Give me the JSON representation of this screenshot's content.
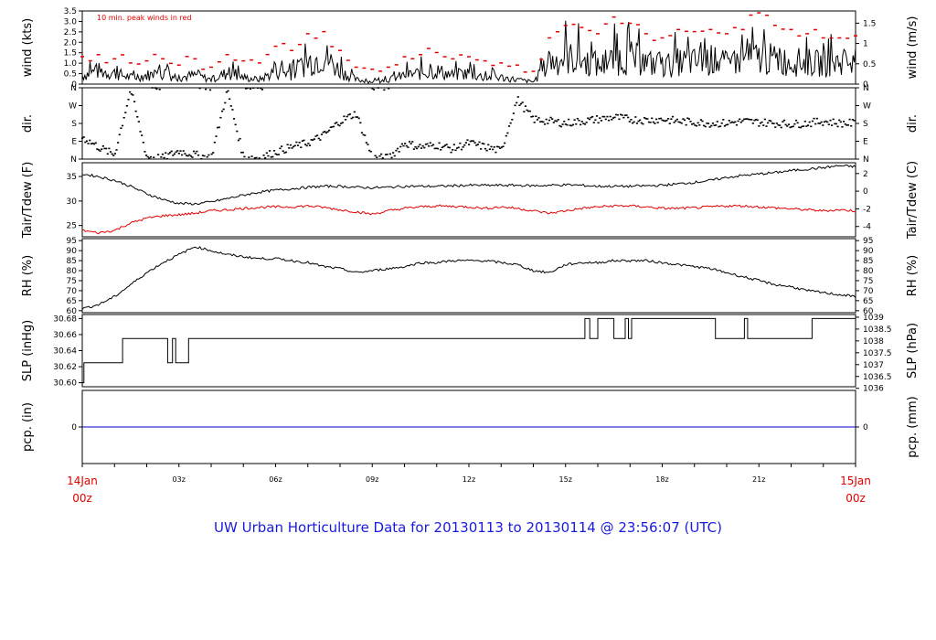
{
  "title": "UW Urban Horticulture Data for 20130113  to  20130114 @ 23:56:07  (UTC)",
  "colors": {
    "title": "#1a1adf",
    "peak": "#e00000",
    "tdew": "#e00000",
    "line": "#000000",
    "precip": "#0000cc",
    "time_edge": "#e00000"
  },
  "time_axis": {
    "start_label": [
      "14Jan",
      "00z"
    ],
    "end_label": [
      "15Jan",
      "00z"
    ],
    "ticks": [
      {
        "hour": 3,
        "label": "03z"
      },
      {
        "hour": 6,
        "label": "06z"
      },
      {
        "hour": 9,
        "label": "09z"
      },
      {
        "hour": 12,
        "label": "12z"
      },
      {
        "hour": 15,
        "label": "15z"
      },
      {
        "hour": 18,
        "label": "18z"
      },
      {
        "hour": 21,
        "label": "21z"
      }
    ]
  },
  "chart_data": [
    {
      "type": "line",
      "key": "wind",
      "ylabel_left": "wind (kts)",
      "ylabel_right": "wind (m/s)",
      "annotation": "10 min. peak winds in red",
      "ylim": [
        0,
        3.5
      ],
      "left_ticks": [
        "0",
        "0.5",
        "1.0",
        "1.5",
        "2.0",
        "2.5",
        "3.0",
        "3.5"
      ],
      "right_ticks": [
        {
          "v": 0,
          "t": "0"
        },
        {
          "v": 0.5,
          "t": "0.5"
        },
        {
          "v": 1,
          "t": "1"
        },
        {
          "v": 1.5,
          "t": "1.5"
        }
      ],
      "right_factor": 0.5144,
      "x_hours": [
        0,
        0.5,
        1,
        1.5,
        2,
        2.5,
        3,
        3.5,
        4,
        4.5,
        5,
        5.5,
        6,
        6.5,
        7,
        7.5,
        8,
        8.5,
        9,
        9.5,
        10,
        10.5,
        11,
        11.5,
        12,
        12.5,
        13,
        13.5,
        14,
        14.5,
        15,
        15.5,
        16,
        16.5,
        17,
        17.5,
        18,
        18.5,
        19,
        19.5,
        20,
        20.5,
        21,
        21.5,
        22,
        22.5,
        23,
        23.5,
        24
      ],
      "mean_kts": [
        0.4,
        0.6,
        0.5,
        0.3,
        0.4,
        0.5,
        0.3,
        0.4,
        0.2,
        0.5,
        0.3,
        0.2,
        0.6,
        0.5,
        1.0,
        1.3,
        0.6,
        0.2,
        0.1,
        0.2,
        0.4,
        0.5,
        0.6,
        0.4,
        0.5,
        0.3,
        0.3,
        0.2,
        0.1,
        1.0,
        1.2,
        1.1,
        0.8,
        1.1,
        1.2,
        1.0,
        0.8,
        1.0,
        1.0,
        1.1,
        0.9,
        1.1,
        1.2,
        1.1,
        1.0,
        1.0,
        0.9,
        1.0,
        1.1
      ],
      "peak_kts": [
        1.3,
        1.4,
        1.2,
        1.0,
        1.1,
        1.2,
        0.9,
        1.2,
        0.8,
        1.4,
        1.1,
        1.0,
        1.8,
        1.6,
        2.4,
        2.5,
        1.6,
        0.8,
        0.7,
        0.8,
        1.3,
        1.4,
        1.5,
        1.2,
        1.3,
        1.1,
        1.0,
        0.9,
        0.6,
        2.2,
        2.8,
        2.7,
        2.4,
        3.2,
        2.9,
        2.4,
        2.2,
        2.6,
        2.5,
        2.6,
        2.4,
        2.6,
        3.4,
        2.8,
        2.6,
        2.4,
        2.2,
        2.2,
        2.3
      ]
    },
    {
      "type": "scatter",
      "key": "dir",
      "ylabel_left": "dir.",
      "ylabel_right": "dir.",
      "ylim": [
        0,
        360
      ],
      "left_ticks": [
        {
          "v": 0,
          "t": "N"
        },
        {
          "v": 90,
          "t": "E"
        },
        {
          "v": 180,
          "t": "S"
        },
        {
          "v": 270,
          "t": "W"
        },
        {
          "v": 360,
          "t": "N"
        }
      ],
      "right_ticks": [
        {
          "v": 0,
          "t": "N"
        },
        {
          "v": 90,
          "t": "E"
        },
        {
          "v": 180,
          "t": "S"
        },
        {
          "v": 270,
          "t": "W"
        },
        {
          "v": 360,
          "t": "N"
        }
      ],
      "x_hours": [
        0,
        0.5,
        1,
        1.5,
        2,
        2.5,
        3,
        3.5,
        4,
        4.5,
        5,
        5.5,
        6,
        6.5,
        7,
        7.5,
        8,
        8.5,
        9,
        9.5,
        10,
        10.5,
        11,
        11.5,
        12,
        12.5,
        13,
        13.5,
        14,
        14.5,
        15,
        15.5,
        16,
        16.5,
        17,
        17.5,
        18,
        18.5,
        19,
        19.5,
        20,
        20.5,
        21,
        21.5,
        22,
        22.5,
        23,
        23.5,
        24
      ],
      "deg": [
        110,
        60,
        20,
        350,
        10,
        5,
        40,
        20,
        5,
        345,
        10,
        5,
        35,
        60,
        80,
        120,
        190,
        230,
        5,
        5,
        80,
        60,
        70,
        50,
        80,
        60,
        40,
        300,
        200,
        190,
        180,
        190,
        200,
        210,
        200,
        195,
        200,
        190,
        185,
        180,
        180,
        190,
        185,
        180,
        175,
        180,
        190,
        180,
        180
      ]
    },
    {
      "type": "line",
      "key": "temp",
      "ylabel_left": "Tair/Tdew (F)",
      "ylabel_right": "Tair/Tdew (C)",
      "ylim": [
        22.7,
        37.8
      ],
      "left_ticks": [
        {
          "v": 25,
          "t": "25"
        },
        {
          "v": 30,
          "t": "30"
        },
        {
          "v": 35,
          "t": "35"
        }
      ],
      "right_ticks": [
        {
          "v": -4,
          "t": "-4"
        },
        {
          "v": -2,
          "t": "-2"
        },
        {
          "v": 0,
          "t": "0"
        },
        {
          "v": 2,
          "t": "2"
        }
      ],
      "x_hours": [
        0,
        0.5,
        1,
        1.5,
        2,
        2.5,
        3,
        3.5,
        4,
        4.5,
        5,
        5.5,
        6,
        6.5,
        7,
        7.5,
        8,
        8.5,
        9,
        9.5,
        10,
        10.5,
        11,
        11.5,
        12,
        12.5,
        13,
        13.5,
        14,
        14.5,
        15,
        15.5,
        16,
        16.5,
        17,
        17.5,
        18,
        18.5,
        19,
        19.5,
        20,
        20.5,
        21,
        21.5,
        22,
        22.5,
        23,
        23.5,
        24
      ],
      "series": [
        {
          "name": "Tair",
          "color": "#000000",
          "values": [
            35.5,
            35.0,
            34.2,
            33.0,
            31.5,
            30.3,
            29.5,
            29.4,
            29.8,
            30.5,
            31.2,
            31.8,
            32.2,
            32.5,
            32.8,
            33.0,
            33.0,
            32.8,
            32.7,
            32.8,
            33.0,
            33.0,
            33.0,
            33.1,
            33.2,
            33.2,
            33.2,
            33.2,
            33.1,
            33.2,
            33.3,
            33.2,
            33.0,
            33.0,
            33.0,
            33.1,
            33.2,
            33.5,
            33.8,
            34.2,
            34.8,
            35.2,
            35.5,
            35.8,
            36.2,
            36.5,
            36.8,
            37.2,
            37.0
          ]
        },
        {
          "name": "Tdew",
          "color": "#e00000",
          "values": [
            24.0,
            23.5,
            24.0,
            25.5,
            26.5,
            27.0,
            27.2,
            27.5,
            28.0,
            28.2,
            28.5,
            28.7,
            28.8,
            28.8,
            29.0,
            28.7,
            28.2,
            27.8,
            27.3,
            28.0,
            28.5,
            28.8,
            29.0,
            28.9,
            28.8,
            28.5,
            28.8,
            28.5,
            28.0,
            27.5,
            28.0,
            28.5,
            28.8,
            29.0,
            29.0,
            28.8,
            28.5,
            28.5,
            28.6,
            28.8,
            29.0,
            29.0,
            28.8,
            28.6,
            28.4,
            28.2,
            28.0,
            28.2,
            28.0
          ]
        }
      ]
    },
    {
      "type": "line",
      "key": "rh",
      "ylabel_left": "RH (%)",
      "ylabel_right": "RH (%)",
      "ylim": [
        59,
        96
      ],
      "left_ticks": [
        "60",
        "65",
        "70",
        "75",
        "80",
        "85",
        "90",
        "95"
      ],
      "right_ticks": [
        {
          "v": 60,
          "t": "60"
        },
        {
          "v": 65,
          "t": "65"
        },
        {
          "v": 70,
          "t": "70"
        },
        {
          "v": 75,
          "t": "75"
        },
        {
          "v": 80,
          "t": "80"
        },
        {
          "v": 85,
          "t": "85"
        },
        {
          "v": 90,
          "t": "90"
        },
        {
          "v": 95,
          "t": "95"
        }
      ],
      "x_hours": [
        0,
        0.5,
        1,
        1.5,
        2,
        2.5,
        3,
        3.5,
        4,
        4.5,
        5,
        5.5,
        6,
        6.5,
        7,
        7.5,
        8,
        8.5,
        9,
        9.5,
        10,
        10.5,
        11,
        11.5,
        12,
        12.5,
        13,
        13.5,
        14,
        14.5,
        15,
        15.5,
        16,
        16.5,
        17,
        17.5,
        18,
        18.5,
        19,
        19.5,
        20,
        20.5,
        21,
        21.5,
        22,
        22.5,
        23,
        23.5,
        24
      ],
      "values": [
        61,
        63,
        67,
        73,
        79,
        84,
        88,
        92,
        90,
        88,
        87,
        86,
        86,
        85,
        84,
        82,
        81,
        79,
        80,
        81,
        82,
        84,
        84,
        85,
        85,
        85,
        84,
        83,
        80,
        79,
        83,
        84,
        84,
        85,
        85,
        85,
        84,
        83,
        82,
        81,
        79,
        77,
        75,
        73,
        72,
        70,
        69,
        68,
        67
      ]
    },
    {
      "type": "line",
      "key": "slp",
      "ylabel_left": "SLP (inHg)",
      "ylabel_right": "SLP (hPa)",
      "ylim": [
        30.595,
        30.685
      ],
      "left_ticks": [
        "30.60",
        "30.62",
        "30.64",
        "30.66",
        "30.68"
      ],
      "right_ticks": [
        {
          "v": 1036,
          "t": "1036"
        },
        {
          "v": 1036.5,
          "t": "1036.5"
        },
        {
          "v": 1037,
          "t": "1037"
        },
        {
          "v": 1037.5,
          "t": "1037.5"
        },
        {
          "v": 1038,
          "t": "1038"
        },
        {
          "v": 1038.5,
          "t": "1038.5"
        },
        {
          "v": 1039,
          "t": "1039"
        }
      ],
      "right_factor": 33.8639,
      "steps": [
        [
          0,
          30.6
        ],
        [
          0.05,
          30.625
        ],
        [
          1.25,
          30.655
        ],
        [
          2.65,
          30.625
        ],
        [
          2.8,
          30.655
        ],
        [
          2.9,
          30.625
        ],
        [
          3.3,
          30.655
        ],
        [
          15.6,
          30.68
        ],
        [
          15.75,
          30.655
        ],
        [
          16.0,
          30.68
        ],
        [
          16.5,
          30.655
        ],
        [
          16.85,
          30.68
        ],
        [
          16.95,
          30.655
        ],
        [
          17.05,
          30.68
        ],
        [
          19.65,
          30.655
        ],
        [
          20.55,
          30.68
        ],
        [
          20.65,
          30.655
        ],
        [
          22.65,
          30.68
        ],
        [
          24,
          30.68
        ]
      ]
    },
    {
      "type": "line",
      "key": "pcp",
      "ylabel_left": "pcp. (in)",
      "ylabel_right": "pcp. (mm)",
      "ylim": [
        -1,
        1
      ],
      "left_ticks": [
        "0"
      ],
      "right_ticks": [
        {
          "v": 0,
          "t": "0"
        }
      ],
      "x_hours": [
        0,
        24
      ],
      "values": [
        0,
        0
      ]
    }
  ]
}
